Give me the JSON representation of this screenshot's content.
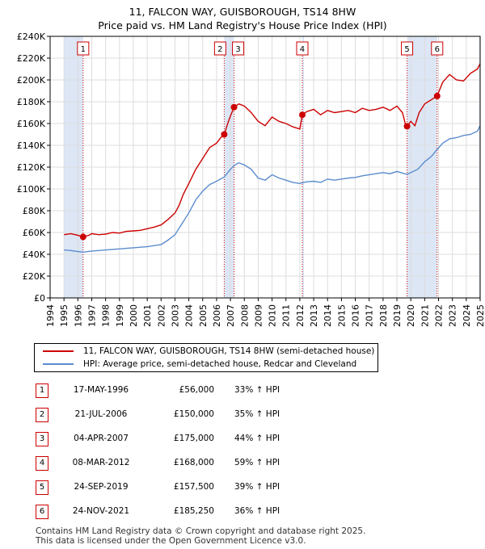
{
  "title_line1": "11, FALCON WAY, GUISBOROUGH, TS14 8HW",
  "title_line2": "Price paid vs. HM Land Registry's House Price Index (HPI)",
  "legend": {
    "property": "11, FALCON WAY, GUISBOROUGH, TS14 8HW (semi-detached house)",
    "hpi": "HPI: Average price, semi-detached house, Redcar and Cleveland"
  },
  "colors": {
    "property": "#cc0000",
    "hpi": "#5b8cce",
    "shade": "#dce6f5",
    "grid": "#dddddd"
  },
  "sales": [
    {
      "num": "1",
      "date": "17-MAY-1996",
      "price": "£56,000",
      "hpi": "33% ↑ HPI"
    },
    {
      "num": "2",
      "date": "21-JUL-2006",
      "price": "£150,000",
      "hpi": "35% ↑ HPI"
    },
    {
      "num": "3",
      "date": "04-APR-2007",
      "price": "£175,000",
      "hpi": "44% ↑ HPI"
    },
    {
      "num": "4",
      "date": "08-MAR-2012",
      "price": "£168,000",
      "hpi": "59% ↑ HPI"
    },
    {
      "num": "5",
      "date": "24-SEP-2019",
      "price": "£157,500",
      "hpi": "39% ↑ HPI"
    },
    {
      "num": "6",
      "date": "24-NOV-2021",
      "price": "£185,250",
      "hpi": "36% ↑ HPI"
    }
  ],
  "footer_line1": "Contains HM Land Registry data © Crown copyright and database right 2025.",
  "footer_line2": "This data is licensed under the Open Government Licence v3.0.",
  "chart_data": {
    "type": "line",
    "title": "11, FALCON WAY, GUISBOROUGH, TS14 8HW — Price paid vs. HM Land Registry's House Price Index (HPI)",
    "xlabel": "",
    "ylabel": "",
    "xlim": [
      1994,
      2025
    ],
    "ylim": [
      0,
      240000
    ],
    "y_ticks": [
      0,
      20000,
      40000,
      60000,
      80000,
      100000,
      120000,
      140000,
      160000,
      180000,
      200000,
      220000,
      240000
    ],
    "y_tick_labels": [
      "£0",
      "£20K",
      "£40K",
      "£60K",
      "£80K",
      "£100K",
      "£120K",
      "£140K",
      "£160K",
      "£180K",
      "£200K",
      "£220K",
      "£240K"
    ],
    "x_ticks": [
      1994,
      1995,
      1996,
      1997,
      1998,
      1999,
      2000,
      2001,
      2002,
      2003,
      2004,
      2005,
      2006,
      2007,
      2008,
      2009,
      2010,
      2011,
      2012,
      2013,
      2014,
      2015,
      2016,
      2017,
      2018,
      2019,
      2020,
      2021,
      2022,
      2023,
      2024,
      2025
    ],
    "x_tick_labels": [
      "1994",
      "1995",
      "1996",
      "1997",
      "1998",
      "1999",
      "2000",
      "2001",
      "2002",
      "2003",
      "2004",
      "2005",
      "2006",
      "2007",
      "2008",
      "2009",
      "2010",
      "2011",
      "2012",
      "2013",
      "2014",
      "2015",
      "2016",
      "2017",
      "2018",
      "2019",
      "2020",
      "2021",
      "2022",
      "2023",
      "2024",
      "2025"
    ],
    "shaded_ranges": [
      [
        1995.0,
        1996.38
      ],
      [
        2006.55,
        2007.26
      ],
      [
        2012.18,
        2012.3
      ],
      [
        2019.73,
        2021.9
      ],
      [
        2024.92,
        2025.0
      ]
    ],
    "sales": [
      {
        "label": "1",
        "x": 1996.38,
        "y": 56000
      },
      {
        "label": "2",
        "x": 2006.55,
        "y": 150000
      },
      {
        "label": "3",
        "x": 2007.26,
        "y": 175000
      },
      {
        "label": "4",
        "x": 2012.18,
        "y": 168000
      },
      {
        "label": "5",
        "x": 2019.73,
        "y": 157500
      },
      {
        "label": "6",
        "x": 2021.9,
        "y": 185250
      }
    ],
    "series": [
      {
        "name": "11, FALCON WAY, GUISBOROUGH, TS14 8HW (semi-detached house)",
        "points": [
          [
            1995.0,
            58000
          ],
          [
            1995.5,
            59000
          ],
          [
            1996.0,
            57500
          ],
          [
            1996.38,
            56000
          ],
          [
            1996.8,
            57500
          ],
          [
            1997.0,
            59000
          ],
          [
            1997.5,
            58000
          ],
          [
            1998.0,
            58500
          ],
          [
            1998.5,
            60000
          ],
          [
            1999.0,
            59500
          ],
          [
            1999.5,
            61000
          ],
          [
            2000.0,
            61500
          ],
          [
            2000.5,
            62000
          ],
          [
            2001.0,
            63500
          ],
          [
            2001.5,
            65000
          ],
          [
            2002.0,
            67000
          ],
          [
            2002.5,
            72000
          ],
          [
            2003.0,
            78000
          ],
          [
            2003.3,
            85000
          ],
          [
            2003.6,
            95000
          ],
          [
            2004.0,
            105000
          ],
          [
            2004.5,
            118000
          ],
          [
            2005.0,
            128000
          ],
          [
            2005.5,
            138000
          ],
          [
            2006.0,
            142000
          ],
          [
            2006.3,
            147000
          ],
          [
            2006.55,
            150000
          ],
          [
            2006.8,
            160000
          ],
          [
            2007.0,
            167000
          ],
          [
            2007.26,
            175000
          ],
          [
            2007.6,
            178000
          ],
          [
            2008.0,
            176000
          ],
          [
            2008.5,
            170000
          ],
          [
            2009.0,
            162000
          ],
          [
            2009.5,
            158000
          ],
          [
            2010.0,
            166000
          ],
          [
            2010.5,
            162000
          ],
          [
            2011.0,
            160000
          ],
          [
            2011.5,
            157000
          ],
          [
            2012.0,
            155000
          ],
          [
            2012.18,
            168000
          ],
          [
            2012.5,
            171000
          ],
          [
            2013.0,
            173000
          ],
          [
            2013.5,
            168000
          ],
          [
            2014.0,
            172000
          ],
          [
            2014.5,
            170000
          ],
          [
            2015.0,
            171000
          ],
          [
            2015.5,
            172000
          ],
          [
            2016.0,
            170000
          ],
          [
            2016.5,
            174000
          ],
          [
            2017.0,
            172000
          ],
          [
            2017.5,
            173000
          ],
          [
            2018.0,
            175000
          ],
          [
            2018.5,
            172000
          ],
          [
            2019.0,
            176000
          ],
          [
            2019.4,
            170000
          ],
          [
            2019.6,
            160000
          ],
          [
            2019.73,
            157500
          ],
          [
            2020.0,
            162000
          ],
          [
            2020.3,
            158000
          ],
          [
            2020.6,
            170000
          ],
          [
            2021.0,
            178000
          ],
          [
            2021.5,
            182000
          ],
          [
            2021.9,
            185250
          ],
          [
            2022.3,
            198000
          ],
          [
            2022.8,
            205000
          ],
          [
            2023.3,
            200000
          ],
          [
            2023.8,
            199000
          ],
          [
            2024.3,
            206000
          ],
          [
            2024.8,
            210000
          ],
          [
            2025.0,
            215000
          ]
        ]
      },
      {
        "name": "HPI: Average price, semi-detached house, Redcar and Cleveland",
        "points": [
          [
            1995.0,
            44000
          ],
          [
            1995.5,
            43500
          ],
          [
            1996.0,
            42500
          ],
          [
            1996.38,
            42000
          ],
          [
            1997.0,
            43000
          ],
          [
            1997.5,
            43500
          ],
          [
            1998.0,
            44000
          ],
          [
            1998.5,
            44500
          ],
          [
            1999.0,
            45000
          ],
          [
            1999.5,
            45500
          ],
          [
            2000.0,
            46000
          ],
          [
            2000.5,
            46500
          ],
          [
            2001.0,
            47000
          ],
          [
            2001.5,
            48000
          ],
          [
            2002.0,
            49000
          ],
          [
            2002.5,
            53000
          ],
          [
            2003.0,
            58000
          ],
          [
            2003.5,
            68000
          ],
          [
            2004.0,
            78000
          ],
          [
            2004.5,
            90000
          ],
          [
            2005.0,
            98000
          ],
          [
            2005.5,
            104000
          ],
          [
            2006.0,
            107000
          ],
          [
            2006.55,
            111000
          ],
          [
            2007.0,
            118000
          ],
          [
            2007.26,
            121500
          ],
          [
            2007.6,
            124000
          ],
          [
            2008.0,
            122000
          ],
          [
            2008.5,
            118000
          ],
          [
            2009.0,
            110000
          ],
          [
            2009.5,
            108000
          ],
          [
            2010.0,
            113000
          ],
          [
            2010.5,
            110000
          ],
          [
            2011.0,
            108000
          ],
          [
            2011.5,
            106000
          ],
          [
            2012.0,
            105000
          ],
          [
            2012.18,
            105700
          ],
          [
            2012.5,
            106500
          ],
          [
            2013.0,
            107000
          ],
          [
            2013.5,
            106000
          ],
          [
            2014.0,
            109000
          ],
          [
            2014.5,
            108000
          ],
          [
            2015.0,
            109000
          ],
          [
            2015.5,
            110000
          ],
          [
            2016.0,
            110500
          ],
          [
            2016.5,
            112000
          ],
          [
            2017.0,
            113000
          ],
          [
            2017.5,
            114000
          ],
          [
            2018.0,
            115000
          ],
          [
            2018.5,
            114000
          ],
          [
            2019.0,
            116000
          ],
          [
            2019.73,
            113300
          ],
          [
            2020.0,
            115000
          ],
          [
            2020.5,
            118000
          ],
          [
            2021.0,
            125000
          ],
          [
            2021.5,
            130000
          ],
          [
            2021.9,
            136200
          ],
          [
            2022.3,
            142000
          ],
          [
            2022.8,
            146000
          ],
          [
            2023.3,
            147000
          ],
          [
            2023.8,
            149000
          ],
          [
            2024.3,
            150000
          ],
          [
            2024.8,
            153000
          ],
          [
            2025.0,
            158000
          ]
        ]
      }
    ]
  }
}
